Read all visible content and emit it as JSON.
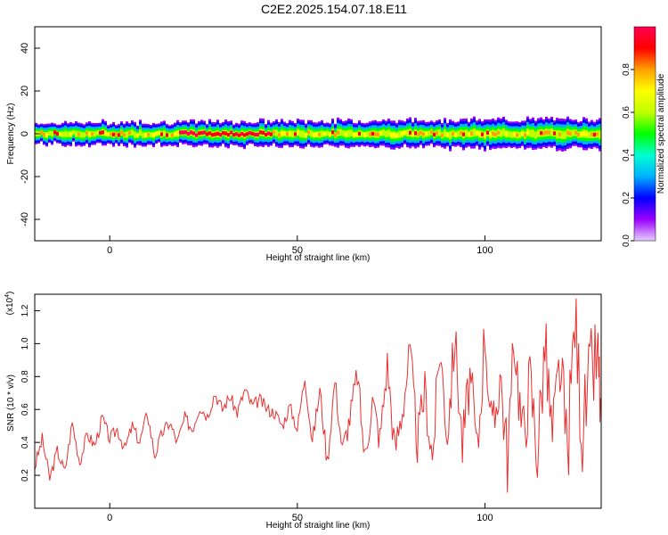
{
  "title": "C2E2.2025.154.07.18.E11",
  "spectrogram": {
    "type": "heatmap",
    "xlabel": "Height of straight line (km)",
    "ylabel": "Frequency (Hz)",
    "xlim": [
      -20,
      131
    ],
    "ylim": [
      -50,
      50
    ],
    "xticks": [
      0,
      50,
      100
    ],
    "yticks": [
      -40,
      -20,
      0,
      20,
      40
    ],
    "band": {
      "center_hz": 0,
      "halfwidth_start_hz": 4,
      "halfwidth_end_hz": 6,
      "peak_band_x_range": [
        18,
        43
      ]
    },
    "colorbar": {
      "label": "Normalized spectral amplitude",
      "ticks": [
        0.0,
        0.2,
        0.4,
        0.6,
        0.8
      ],
      "range": [
        0,
        1
      ],
      "colors": [
        "#e6d0ff",
        "#9a00ff",
        "#0000ff",
        "#00b0ff",
        "#00ffd0",
        "#00ff00",
        "#c0ff00",
        "#ffff00",
        "#ffa000",
        "#ff0000",
        "#ff0050"
      ]
    }
  },
  "chart_data": {
    "type": "line",
    "xlabel": "Height of straight line (km)",
    "ylabel": "SNR (10 * v/v)",
    "y_multiplier": "(x10",
    "y_multiplier_exp": "4",
    "y_multiplier_close": ")",
    "xlim": [
      -20,
      131
    ],
    "ylim": [
      0.0,
      1.3
    ],
    "xticks": [
      0,
      50,
      100
    ],
    "yticks": [
      0.2,
      0.4,
      0.6,
      0.8,
      1.0,
      1.2
    ],
    "color": "#e83030",
    "series": [
      {
        "x": [
          -20,
          -18,
          -16,
          -14,
          -12,
          -10,
          -8,
          -6,
          -4,
          -2,
          0,
          2,
          4,
          6,
          8,
          10,
          12,
          14,
          16,
          18,
          20,
          22,
          24,
          26,
          28,
          30,
          32,
          34,
          36,
          38,
          40,
          42,
          44,
          46,
          48,
          50,
          52,
          54,
          56,
          58,
          60,
          62,
          64,
          66,
          68,
          70,
          72,
          74,
          76,
          78,
          80,
          82,
          84,
          86,
          88,
          90,
          92,
          94,
          96,
          98,
          100,
          102,
          104,
          106,
          108,
          110,
          112,
          114,
          116,
          118,
          120,
          122,
          124,
          126,
          128,
          130,
          131
        ],
        "y": [
          0.25,
          0.42,
          0.18,
          0.35,
          0.22,
          0.52,
          0.28,
          0.45,
          0.38,
          0.55,
          0.42,
          0.48,
          0.36,
          0.5,
          0.4,
          0.58,
          0.32,
          0.46,
          0.52,
          0.4,
          0.55,
          0.48,
          0.62,
          0.56,
          0.7,
          0.6,
          0.68,
          0.58,
          0.72,
          0.62,
          0.66,
          0.6,
          0.58,
          0.5,
          0.62,
          0.48,
          0.8,
          0.4,
          0.72,
          0.28,
          0.78,
          0.35,
          0.55,
          0.82,
          0.3,
          0.66,
          0.42,
          0.88,
          0.35,
          0.6,
          0.95,
          0.4,
          0.72,
          0.3,
          0.98,
          0.45,
          1.05,
          0.38,
          0.8,
          0.32,
          1.1,
          0.4,
          0.85,
          0.3,
          1.05,
          0.42,
          0.78,
          0.35,
          1.0,
          0.4,
          0.88,
          0.32,
          1.18,
          0.45,
          0.8,
          0.92,
          0.6
        ]
      }
    ]
  }
}
